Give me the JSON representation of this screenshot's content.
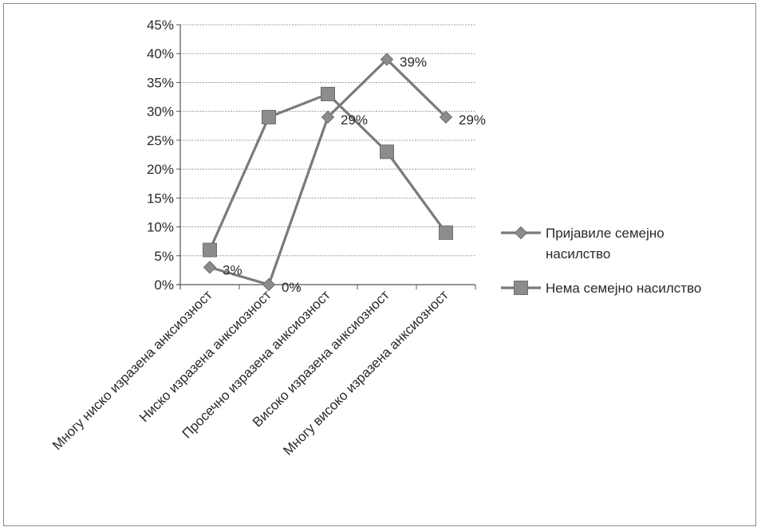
{
  "chart_data": {
    "type": "line",
    "categories": [
      "Многу ниско изразена анксиозност",
      "Ниско изразена анксиозност",
      "Просечно изразена анксиозност",
      "Високо изразена анксиозност",
      "Многу високо изразена анксиозност"
    ],
    "series": [
      {
        "name_lines": [
          "Пријавиле семејно",
          "насилство"
        ],
        "marker": "diamond",
        "values": [
          3,
          0,
          29,
          39,
          29
        ],
        "data_labels": [
          "3%",
          "0%",
          "29%",
          "39%",
          "29%"
        ]
      },
      {
        "name": "Нема семејно насилство",
        "marker": "square",
        "values": [
          6,
          29,
          33,
          23,
          9
        ]
      }
    ],
    "y_ticks": [
      "0%",
      "5%",
      "10%",
      "15%",
      "20%",
      "25%",
      "30%",
      "35%",
      "40%",
      "45%"
    ],
    "ylim": [
      0,
      45
    ],
    "y_unit": "%",
    "grid": "horizontal",
    "legend_position": "right",
    "colors": {
      "line": "#7a7a7a",
      "marker": "#8c8c8c",
      "grid": "#9a9a9a",
      "text": "#2a2a2a"
    }
  }
}
